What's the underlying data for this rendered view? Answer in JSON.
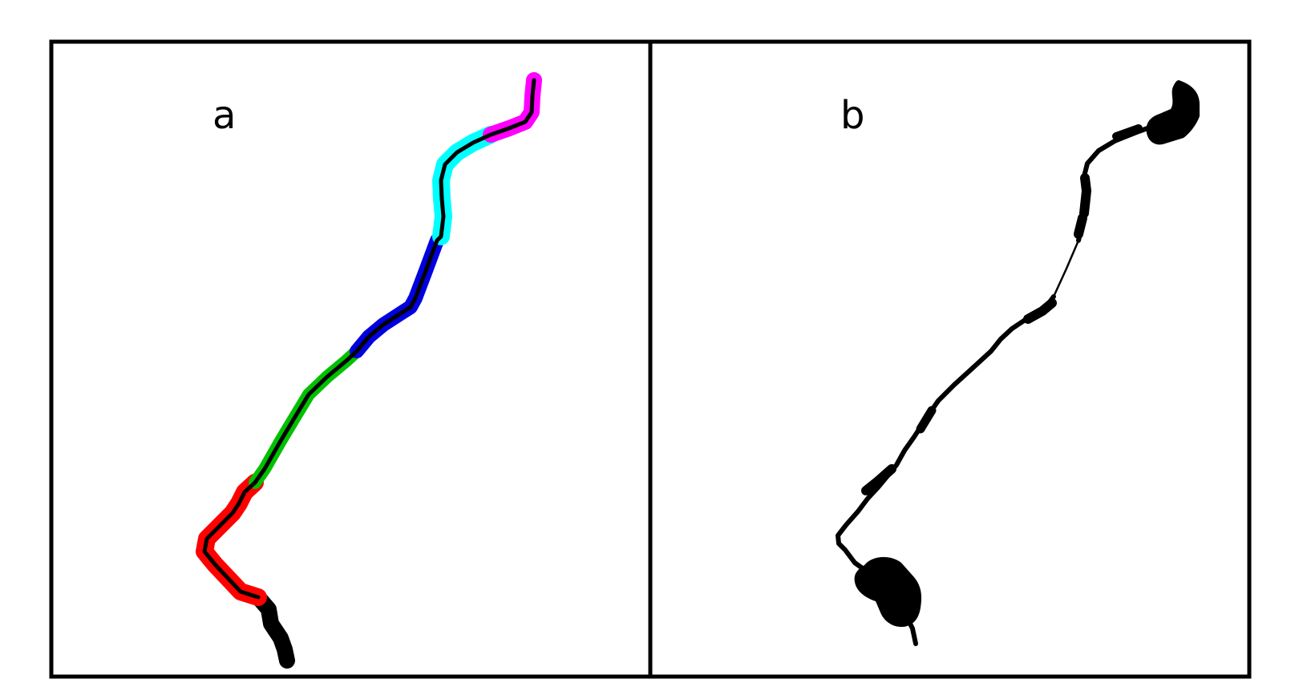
{
  "panels": [
    {
      "label": "a",
      "segment_colors": {
        "black": "#000000",
        "red": "#ff0000",
        "green": "#00c000",
        "blue": "#0000e0",
        "cyan": "#00ffff",
        "magenta": "#ff00ff"
      }
    },
    {
      "label": "b",
      "stroke_color": "#000000"
    }
  ]
}
